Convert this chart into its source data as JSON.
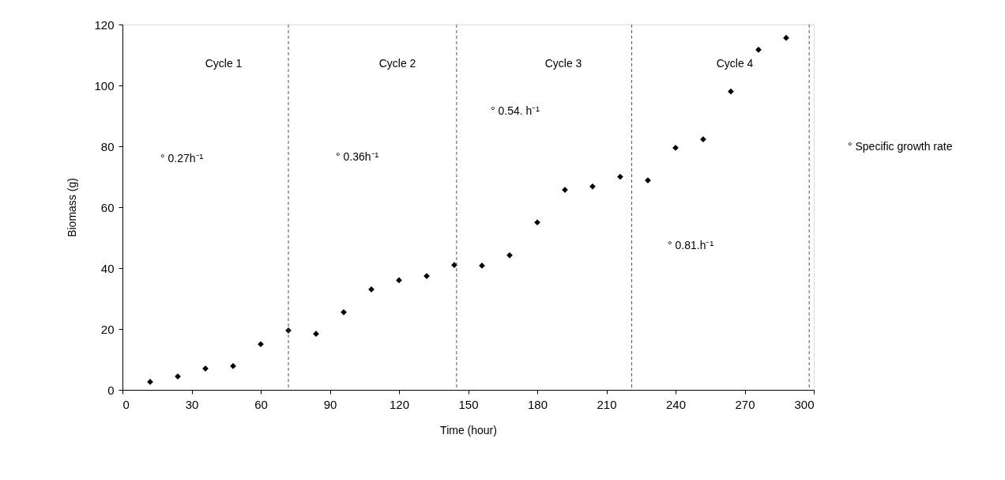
{
  "chart_data": {
    "type": "scatter",
    "xlabel": "Time (hour)",
    "ylabel": "Biomass (g)",
    "x": [
      12,
      24,
      36,
      48,
      60,
      72,
      84,
      96,
      108,
      120,
      132,
      144,
      156,
      168,
      180,
      192,
      204,
      216,
      228,
      240,
      252,
      264,
      276,
      288
    ],
    "series": [
      {
        "color": "#000000",
        "values": [
          2.6,
          4.4,
          7,
          7.8,
          15,
          19.5,
          18.4,
          25.5,
          33,
          36,
          37.4,
          41,
          40.8,
          44.2,
          55,
          65.7,
          66.8,
          70,
          68.8,
          79.5,
          82.3,
          98,
          111.7,
          115.6
        ]
      }
    ],
    "marker": "diamond",
    "grid": false,
    "xlim": [
      0,
      300
    ],
    "xticks": [
      0,
      30,
      60,
      90,
      120,
      150,
      180,
      210,
      240,
      270,
      300
    ],
    "ylim": [
      0,
      120
    ],
    "yticks": [
      0,
      20,
      40,
      60,
      80,
      100,
      120
    ],
    "ref_lines": [
      {
        "axis": "x",
        "value": 72,
        "color": "#555555",
        "line_style": "dashed"
      },
      {
        "axis": "x",
        "value": 145,
        "color": "#555555",
        "line_style": "dashed"
      },
      {
        "axis": "x",
        "value": 221,
        "color": "#555555",
        "line_style": "dashed"
      },
      {
        "axis": "x",
        "value": 298,
        "color": "#555555",
        "line_style": "dashed"
      }
    ],
    "annotations": [
      "Cycle 1",
      "Cycle 2",
      "Cycle 3",
      "Cycle 4",
      "° 0.27h⁻¹",
      "° 0.36h⁻¹",
      "° 0.54. h⁻¹",
      "° 0.81.h⁻¹",
      "° Specific growth rate"
    ]
  }
}
